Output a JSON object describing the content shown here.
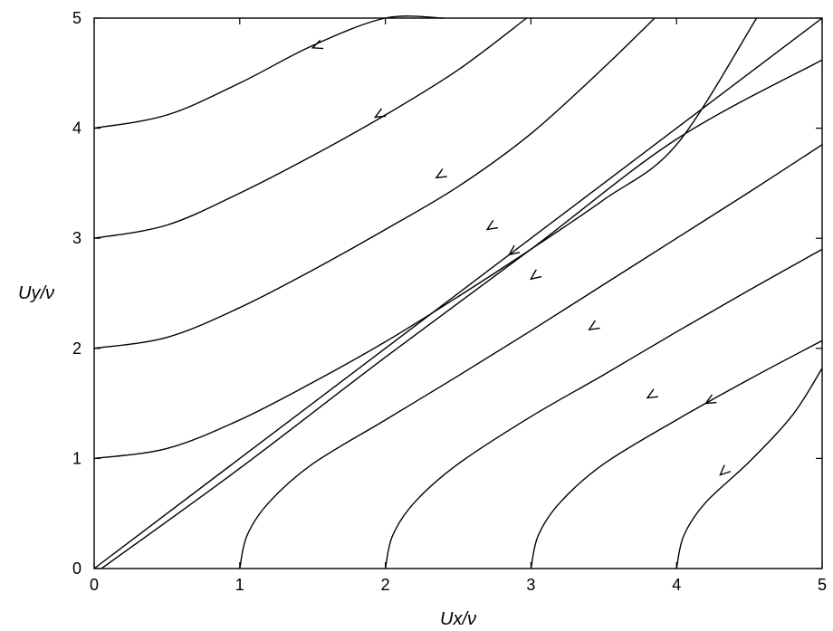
{
  "chart_data": {
    "type": "line",
    "title": "",
    "xlabel": "Ux/ν",
    "ylabel": "Uy/ν",
    "xlim": [
      0,
      5
    ],
    "ylim": [
      0,
      5
    ],
    "x_ticks": [
      "0",
      "1",
      "2",
      "3",
      "4",
      "5"
    ],
    "y_ticks": [
      "0",
      "1",
      "2",
      "3",
      "4",
      "5"
    ],
    "grid": false,
    "series": [
      {
        "x": [
          0,
          0.5,
          1.0,
          1.5,
          2.0,
          2.4
        ],
        "y": [
          4.0,
          4.12,
          4.41,
          4.75,
          5.0,
          5.0
        ],
        "arrow": [
          1.5,
          4.73
        ]
      },
      {
        "x": [
          0,
          0.5,
          1.0,
          1.5,
          2.0,
          2.5,
          2.97
        ],
        "y": [
          3.0,
          3.12,
          3.41,
          3.75,
          4.12,
          4.53,
          5.0
        ],
        "arrow": [
          1.93,
          4.1
        ]
      },
      {
        "x": [
          0,
          0.5,
          1.0,
          1.5,
          2.0,
          2.5,
          3.0,
          3.5,
          3.85
        ],
        "y": [
          2.0,
          2.1,
          2.37,
          2.71,
          3.08,
          3.47,
          3.95,
          4.55,
          5.0
        ],
        "arrow": [
          2.35,
          3.55
        ]
      },
      {
        "x": [
          0,
          0.5,
          1.0,
          1.5,
          2.0,
          2.5,
          3.0,
          3.5,
          4.0,
          4.55
        ],
        "y": [
          1.0,
          1.09,
          1.35,
          1.69,
          2.06,
          2.47,
          2.9,
          3.35,
          3.85,
          5.0
        ],
        "arrow": [
          2.7,
          3.08
        ]
      },
      {
        "x": [
          0,
          5.0
        ],
        "y": [
          0,
          5.0
        ],
        "arrow": [
          2.85,
          2.85
        ]
      },
      {
        "x": [
          0.05,
          1.0,
          2.0,
          3.0,
          4.0,
          5.0
        ],
        "y": [
          0,
          0.91,
          1.92,
          2.9,
          3.9,
          4.62
        ],
        "arrow": [
          3.0,
          2.63
        ]
      },
      {
        "x": [
          1.0,
          1.05,
          1.2,
          1.5,
          2.0,
          2.5,
          3.0,
          3.5,
          4.0,
          4.5,
          5.0
        ],
        "y": [
          0,
          0.3,
          0.6,
          0.95,
          1.35,
          1.75,
          2.16,
          2.58,
          3.0,
          3.42,
          3.85
        ],
        "arrow": [
          3.4,
          2.17
        ]
      },
      {
        "x": [
          2.0,
          2.05,
          2.2,
          2.5,
          3.0,
          3.5,
          4.0,
          4.5,
          5.0
        ],
        "y": [
          0,
          0.3,
          0.6,
          0.95,
          1.38,
          1.76,
          2.15,
          2.53,
          2.9
        ],
        "arrow": [
          3.8,
          1.55
        ]
      },
      {
        "x": [
          3.0,
          3.05,
          3.2,
          3.5,
          4.0,
          4.5,
          5.0
        ],
        "y": [
          0,
          0.3,
          0.6,
          0.95,
          1.35,
          1.72,
          2.07
        ],
        "arrow": [
          4.2,
          1.5
        ]
      },
      {
        "x": [
          4.0,
          4.05,
          4.2,
          4.5,
          4.8,
          5.0
        ],
        "y": [
          0,
          0.3,
          0.6,
          0.97,
          1.4,
          1.82
        ],
        "arrow": [
          4.3,
          0.85
        ]
      }
    ]
  }
}
